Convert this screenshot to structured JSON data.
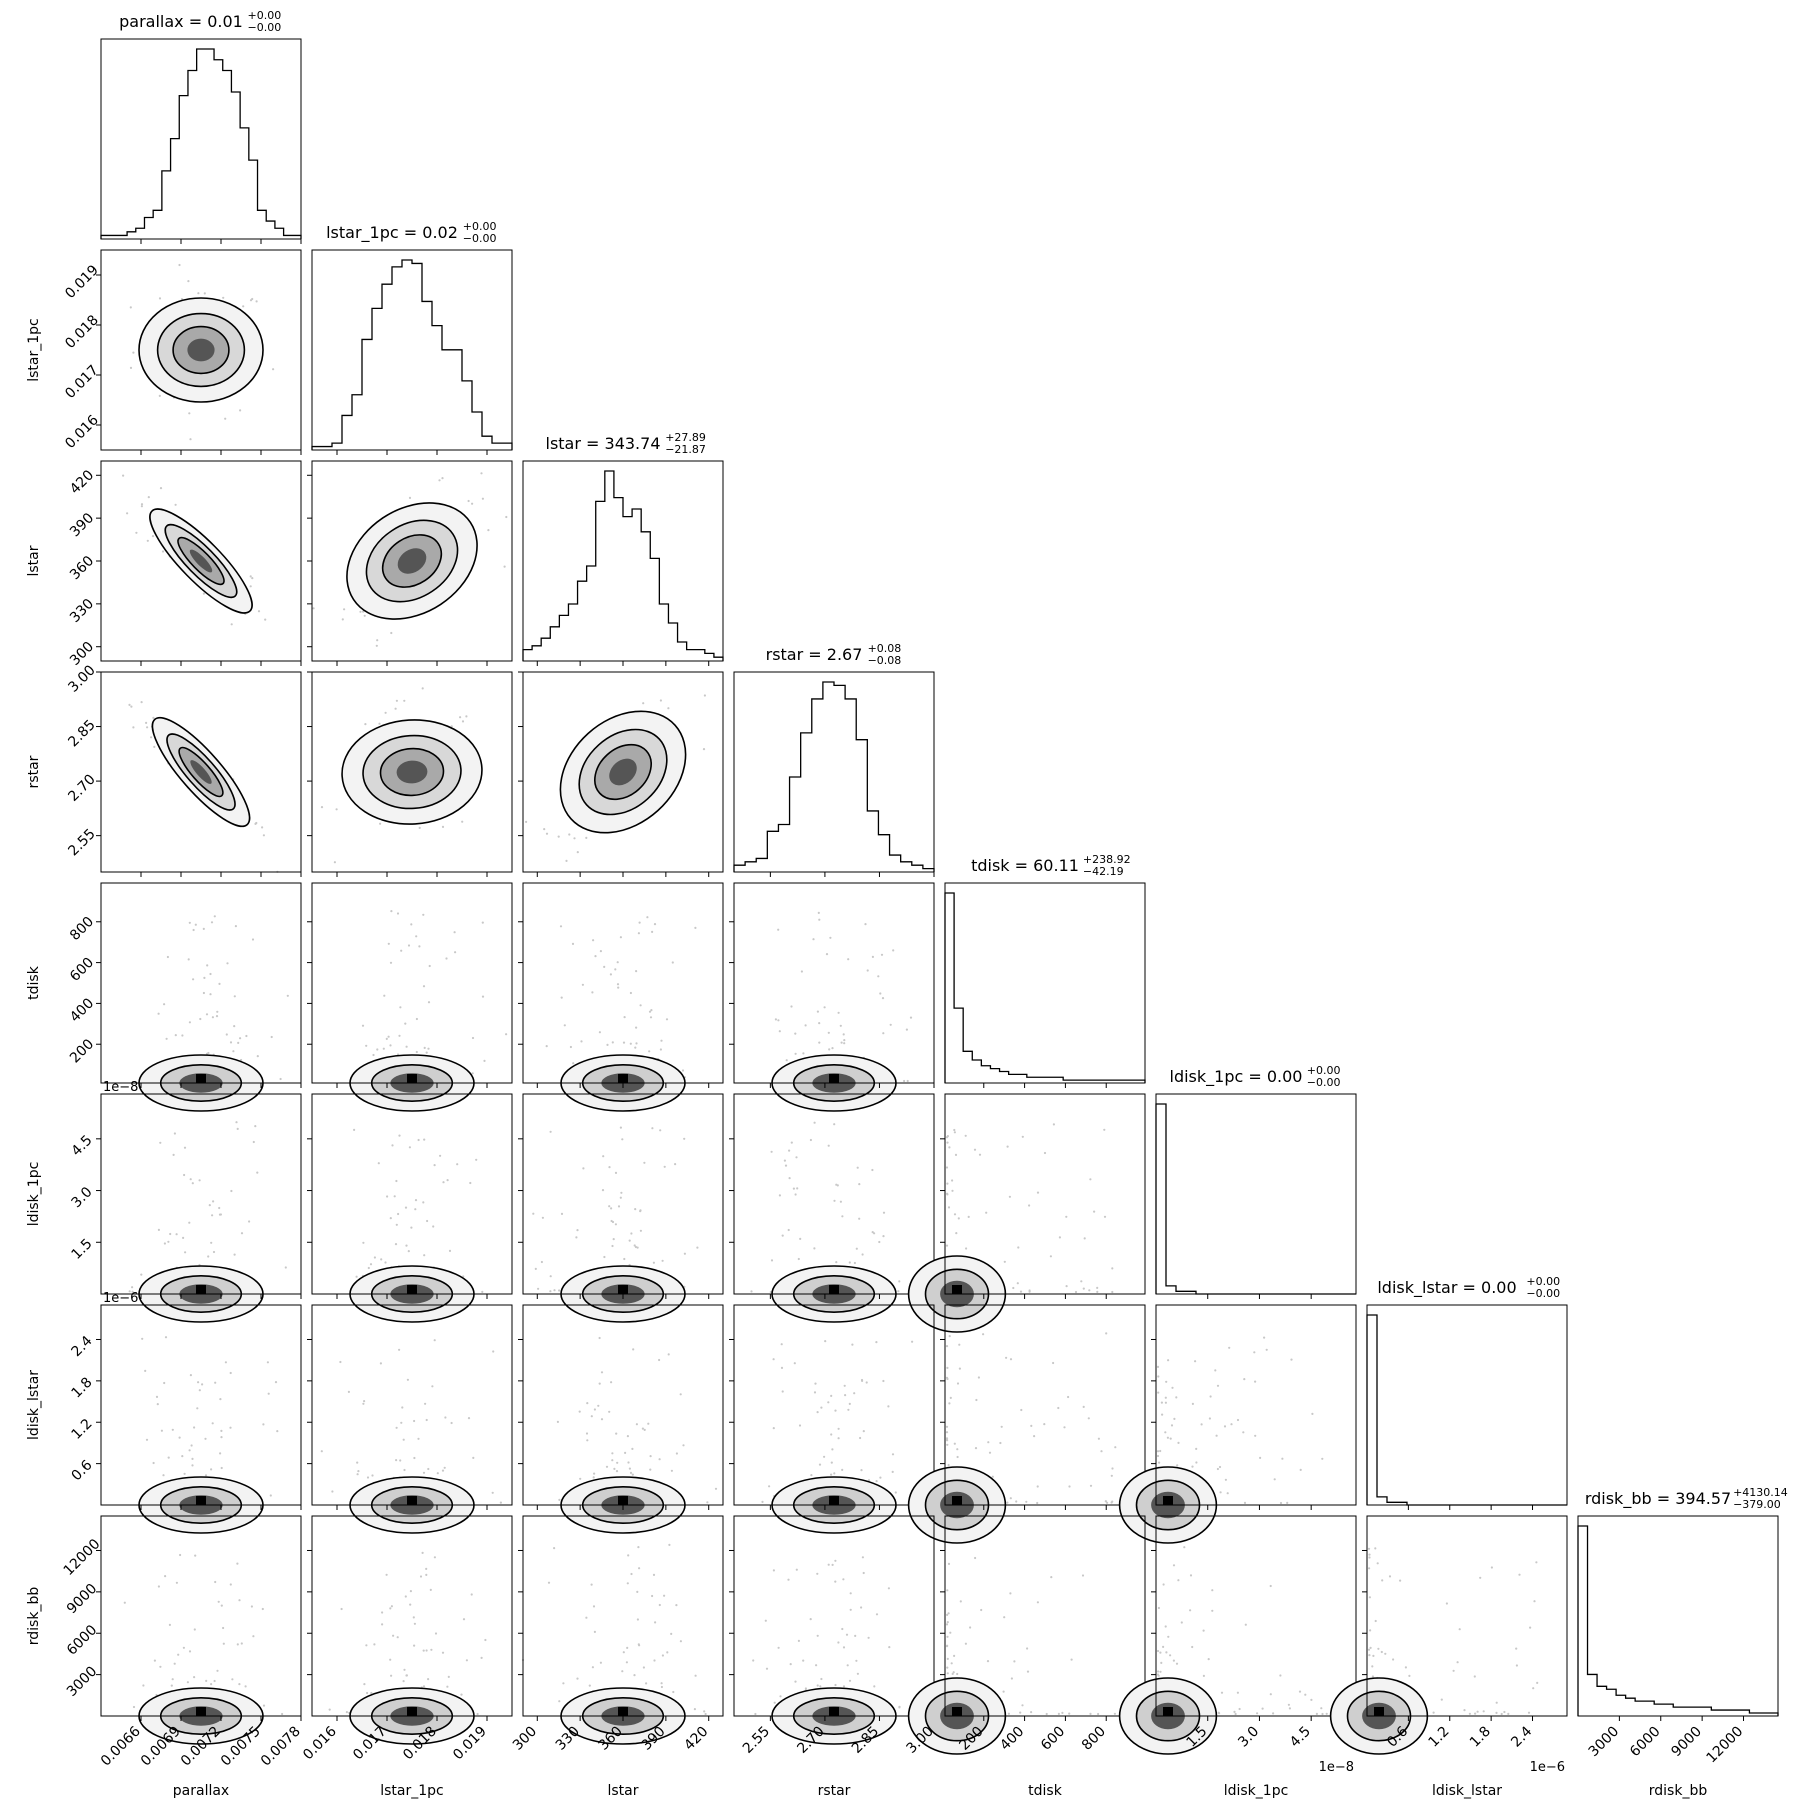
{
  "chart_data": {
    "type": "corner",
    "parameters": [
      {
        "name": "parallax",
        "range": [
          0.0063,
          0.0078
        ],
        "ticks": [
          "0.0066",
          "0.0069",
          "0.0072",
          "0.0075",
          "0.0078"
        ],
        "tick_values": [
          0.0066,
          0.0069,
          0.0072,
          0.0075,
          0.0078
        ],
        "mean": 0.00705,
        "sd": 0.00022,
        "skew": false,
        "title_main": "parallax = 0.01",
        "title_sup": "+0.00",
        "title_sub": "−0.00"
      },
      {
        "name": "lstar_1pc",
        "range": [
          0.0155,
          0.0195
        ],
        "ticks": [
          "0.016",
          "0.017",
          "0.018",
          "0.019"
        ],
        "tick_values": [
          0.016,
          0.017,
          0.018,
          0.019
        ],
        "mean": 0.01745,
        "sd": 0.0007,
        "skew": false,
        "title_main": "lstar_1pc = 0.02",
        "title_sup": "+0.00",
        "title_sub": "−0.00"
      },
      {
        "name": "lstar",
        "range": [
          290,
          430
        ],
        "ticks": [
          "300",
          "330",
          "360",
          "390",
          "420"
        ],
        "tick_values": [
          300,
          330,
          360,
          390,
          420
        ],
        "mean": 343.74,
        "sd": 24,
        "skew": false,
        "title_main": "lstar = 343.74",
        "title_sup": "+27.89",
        "title_sub": "−21.87"
      },
      {
        "name": "rstar",
        "range": [
          2.45,
          3.0
        ],
        "ticks": [
          "2.55",
          "2.70",
          "2.85",
          "3.00"
        ],
        "tick_values": [
          2.55,
          2.7,
          2.85,
          3.0
        ],
        "mean": 2.67,
        "sd": 0.08,
        "skew": false,
        "title_main": "rstar = 2.67",
        "title_sup": "+0.08",
        "title_sub": "−0.08"
      },
      {
        "name": "tdisk",
        "range": [
          10,
          990
        ],
        "ticks": [
          "200",
          "400",
          "600",
          "800"
        ],
        "tick_values": [
          200,
          400,
          600,
          800
        ],
        "mean": 60,
        "sd": 150,
        "skew": true,
        "title_main": "tdisk = 60.11",
        "title_sup": "+238.92",
        "title_sub": "−42.19"
      },
      {
        "name": "ldisk_1pc",
        "range": [
          0,
          5.8e-08
        ],
        "ticks": [
          "1.5",
          "3.0",
          "4.5"
        ],
        "tick_values": [
          1.5e-08,
          3e-08,
          4.5e-08
        ],
        "offset": "1e−8",
        "mean": 0,
        "sd": 0,
        "skew": true,
        "title_main": "ldisk_1pc = 0.00",
        "title_sup": "+0.00",
        "title_sub": "−0.00"
      },
      {
        "name": "ldisk_lstar",
        "range": [
          0,
          2.9e-06
        ],
        "ticks": [
          "0.6",
          "1.2",
          "1.8",
          "2.4"
        ],
        "tick_values": [
          6e-07,
          1.2e-06,
          1.8e-06,
          2.4e-06
        ],
        "offset": "1e−6",
        "mean": 0,
        "sd": 0,
        "skew": true,
        "title_main": "ldisk_lstar = 0.00",
        "title_sup": "+0.00",
        "title_sub": "−0.00"
      },
      {
        "name": "rdisk_bb",
        "range": [
          0,
          14500
        ],
        "ticks": [
          "3000",
          "6000",
          "9000",
          "12000"
        ],
        "tick_values": [
          3000,
          6000,
          9000,
          12000
        ],
        "mean": 394.57,
        "sd": 2500,
        "skew": true,
        "title_main": "rdisk_bb = 394.57",
        "title_sup": "+4130.14",
        "title_sub": "−379.00"
      }
    ],
    "histograms": [
      [
        1,
        1,
        1,
        2,
        3,
        6,
        8,
        19,
        28,
        40,
        47,
        53,
        53,
        50,
        47,
        41,
        31,
        22,
        8,
        5,
        3,
        1,
        1
      ],
      [
        1,
        1,
        2,
        10,
        16,
        32,
        41,
        48,
        53,
        55,
        54,
        43,
        36,
        29,
        29,
        20,
        11,
        4,
        2,
        2
      ],
      [
        3,
        4,
        6,
        9,
        12,
        15,
        21,
        25,
        42,
        50,
        43,
        38,
        40,
        34,
        27,
        15,
        10,
        5,
        3,
        3,
        2,
        1
      ],
      [
        2,
        3,
        4,
        12,
        14,
        28,
        41,
        51,
        56,
        55,
        51,
        39,
        18,
        11,
        5,
        3,
        2,
        1
      ],
      [
        66,
        26,
        11,
        8,
        6,
        5,
        4,
        3,
        3,
        2,
        2,
        2,
        2,
        1,
        1,
        1,
        1,
        1,
        1,
        1,
        1,
        1
      ],
      [
        70,
        3,
        1,
        1,
        0,
        0,
        0,
        0,
        0,
        0,
        0,
        0,
        0,
        0,
        0,
        0,
        0,
        0,
        0,
        0
      ],
      [
        70,
        3,
        1,
        1,
        0,
        0,
        0,
        0,
        0,
        0,
        0,
        0,
        0,
        0,
        0,
        0,
        0,
        0,
        0,
        0
      ],
      [
        64,
        14,
        10,
        9,
        7,
        6,
        5,
        5,
        4,
        4,
        3,
        3,
        3,
        3,
        2,
        2,
        2,
        2,
        1,
        1,
        1
      ]
    ]
  }
}
